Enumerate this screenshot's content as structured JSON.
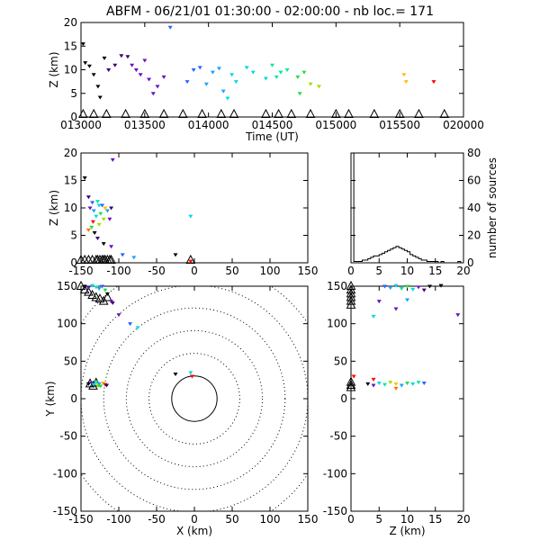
{
  "title": "ABFM - 06/21/01 01:30:00 - 02:00:00 - nb loc.=     171",
  "colors": {
    "axis": "#000000",
    "palette": [
      "#000000",
      "#3a0070",
      "#6a10c0",
      "#2a60ff",
      "#1aa0ff",
      "#00d8e8",
      "#00e8a0",
      "#20e040",
      "#a0e000",
      "#ffc000",
      "#ff7000",
      "#ff0000"
    ]
  },
  "chart_data": [
    {
      "id": "time_height",
      "type": "scatter",
      "xlabel": "Time (UT)",
      "ylabel": "Z (km)",
      "xlim": [
        "013000",
        "020000"
      ],
      "ylim": [
        0,
        20
      ],
      "x_ticks": [
        "013000",
        "013500",
        "014000",
        "014500",
        "015000",
        "015500",
        "020000"
      ],
      "y_ticks": [
        0,
        5,
        10,
        15,
        20
      ],
      "points": [
        {
          "t": "01:30:10",
          "z": 15.5,
          "c": 0
        },
        {
          "t": "01:30:20",
          "z": 11.5,
          "c": 0
        },
        {
          "t": "01:30:40",
          "z": 10.8,
          "c": 0
        },
        {
          "t": "01:31:00",
          "z": 9.0,
          "c": 0
        },
        {
          "t": "01:31:20",
          "z": 6.5,
          "c": 0
        },
        {
          "t": "01:31:30",
          "z": 4.2,
          "c": 0
        },
        {
          "t": "01:31:50",
          "z": 12.5,
          "c": 0
        },
        {
          "t": "01:32:10",
          "z": 10.0,
          "c": 1
        },
        {
          "t": "01:32:40",
          "z": 11.0,
          "c": 1
        },
        {
          "t": "01:33:10",
          "z": 13.0,
          "c": 1
        },
        {
          "t": "01:33:40",
          "z": 12.8,
          "c": 1
        },
        {
          "t": "01:34:00",
          "z": 11.0,
          "c": 2
        },
        {
          "t": "01:34:20",
          "z": 10.0,
          "c": 2
        },
        {
          "t": "01:34:40",
          "z": 9.0,
          "c": 2
        },
        {
          "t": "01:35:00",
          "z": 12.0,
          "c": 2
        },
        {
          "t": "01:35:20",
          "z": 8.0,
          "c": 2
        },
        {
          "t": "01:35:40",
          "z": 5.0,
          "c": 2
        },
        {
          "t": "01:36:00",
          "z": 6.5,
          "c": 2
        },
        {
          "t": "01:36:30",
          "z": 8.5,
          "c": 2
        },
        {
          "t": "01:37:00",
          "z": 19.0,
          "c": 3
        },
        {
          "t": "01:38:20",
          "z": 7.5,
          "c": 3
        },
        {
          "t": "01:38:50",
          "z": 10.0,
          "c": 3
        },
        {
          "t": "01:39:20",
          "z": 10.5,
          "c": 3
        },
        {
          "t": "01:39:50",
          "z": 7.0,
          "c": 4
        },
        {
          "t": "01:40:20",
          "z": 9.5,
          "c": 4
        },
        {
          "t": "01:40:50",
          "z": 10.3,
          "c": 4
        },
        {
          "t": "01:41:10",
          "z": 5.5,
          "c": 4
        },
        {
          "t": "01:41:30",
          "z": 4.0,
          "c": 5
        },
        {
          "t": "01:41:50",
          "z": 9.0,
          "c": 5
        },
        {
          "t": "01:42:10",
          "z": 7.5,
          "c": 5
        },
        {
          "t": "01:43:00",
          "z": 10.5,
          "c": 5
        },
        {
          "t": "01:43:30",
          "z": 9.5,
          "c": 5
        },
        {
          "t": "01:44:30",
          "z": 8.2,
          "c": 5
        },
        {
          "t": "01:45:00",
          "z": 11.0,
          "c": 6
        },
        {
          "t": "01:45:20",
          "z": 8.5,
          "c": 6
        },
        {
          "t": "01:45:40",
          "z": 9.5,
          "c": 6
        },
        {
          "t": "01:46:10",
          "z": 10.0,
          "c": 6
        },
        {
          "t": "01:47:00",
          "z": 8.5,
          "c": 7
        },
        {
          "t": "01:47:10",
          "z": 5.0,
          "c": 7
        },
        {
          "t": "01:47:30",
          "z": 9.5,
          "c": 7
        },
        {
          "t": "01:48:00",
          "z": 7.0,
          "c": 8
        },
        {
          "t": "01:48:40",
          "z": 6.5,
          "c": 8
        },
        {
          "t": "01:55:20",
          "z": 9.0,
          "c": 9
        },
        {
          "t": "01:55:30",
          "z": 7.5,
          "c": 9
        },
        {
          "t": "01:57:40",
          "z": 7.5,
          "c": 11
        }
      ],
      "ground_markers": [
        {
          "t": "01:30:10",
          "c": 0
        },
        {
          "t": "01:31:00",
          "c": 0
        },
        {
          "t": "01:32:00",
          "c": 1
        },
        {
          "t": "01:33:30",
          "c": 1
        },
        {
          "t": "01:35:00",
          "c": 2
        },
        {
          "t": "01:36:30",
          "c": 2
        },
        {
          "t": "01:38:00",
          "c": 3
        },
        {
          "t": "01:39:30",
          "c": 4
        },
        {
          "t": "01:41:00",
          "c": 5
        },
        {
          "t": "01:42:00",
          "c": 5
        },
        {
          "t": "01:44:30",
          "c": 6
        },
        {
          "t": "01:45:30",
          "c": 6
        },
        {
          "t": "01:46:30",
          "c": 7
        },
        {
          "t": "01:48:00",
          "c": 8
        },
        {
          "t": "01:50:00",
          "c": 9
        },
        {
          "t": "01:51:00",
          "c": 9
        },
        {
          "t": "01:53:00",
          "c": 9
        },
        {
          "t": "01:55:00",
          "c": 10
        },
        {
          "t": "01:56:30",
          "c": 11
        },
        {
          "t": "01:58:30",
          "c": 11
        }
      ]
    },
    {
      "id": "x_height",
      "type": "scatter",
      "ylabel": "Z (km)",
      "xlim": [
        -150,
        150
      ],
      "ylim": [
        0,
        20
      ],
      "x_ticks": [
        -150,
        -100,
        -50,
        0,
        50,
        100,
        150
      ],
      "y_ticks": [
        0,
        5,
        10,
        15,
        20
      ],
      "points": [
        {
          "x": -145,
          "z": 15.5,
          "c": 0
        },
        {
          "x": -140,
          "z": 12.0,
          "c": 1
        },
        {
          "x": -138,
          "z": 10.0,
          "c": 2
        },
        {
          "x": -135,
          "z": 11.0,
          "c": 3
        },
        {
          "x": -133,
          "z": 9.5,
          "c": 4
        },
        {
          "x": -130,
          "z": 8.5,
          "c": 5
        },
        {
          "x": -128,
          "z": 11.2,
          "c": 6
        },
        {
          "x": -126,
          "z": 10.5,
          "c": 5
        },
        {
          "x": -124,
          "z": 9.0,
          "c": 7
        },
        {
          "x": -122,
          "z": 10.5,
          "c": 3
        },
        {
          "x": -120,
          "z": 8.0,
          "c": 8
        },
        {
          "x": -118,
          "z": 10.0,
          "c": 9
        },
        {
          "x": -115,
          "z": 9.5,
          "c": 4
        },
        {
          "x": -112,
          "z": 8.0,
          "c": 2
        },
        {
          "x": -110,
          "z": 10.0,
          "c": 1
        },
        {
          "x": -108,
          "z": 18.8,
          "c": 2
        },
        {
          "x": -136,
          "z": 6.5,
          "c": 7
        },
        {
          "x": -132,
          "z": 5.5,
          "c": 0
        },
        {
          "x": -128,
          "z": 4.5,
          "c": 1
        },
        {
          "x": -120,
          "z": 3.5,
          "c": 0
        },
        {
          "x": -110,
          "z": 3.0,
          "c": 2
        },
        {
          "x": -95,
          "z": 1.5,
          "c": 3
        },
        {
          "x": -80,
          "z": 1.0,
          "c": 4
        },
        {
          "x": -25,
          "z": 1.5,
          "c": 0
        },
        {
          "x": -5,
          "z": 8.5,
          "c": 5
        },
        {
          "x": -140,
          "z": 6.0,
          "c": 10
        },
        {
          "x": -134,
          "z": 7.5,
          "c": 11
        },
        {
          "x": -126,
          "z": 7.0,
          "c": 8
        },
        {
          "x": -5,
          "z": 0.3,
          "c": 11
        }
      ],
      "ground_markers": [
        -150,
        -145,
        -140,
        -135,
        -130,
        -128,
        -125,
        -122,
        -120,
        -118,
        -115,
        -112,
        -110,
        -5
      ]
    },
    {
      "id": "histogram",
      "type": "bar",
      "xlabel": "",
      "ylabel": "number of sources",
      "xlim": [
        0,
        20
      ],
      "ylim": [
        0,
        80
      ],
      "x_ticks": [
        0,
        5,
        10,
        15,
        20
      ],
      "y_ticks": [
        0,
        20,
        40,
        60,
        80
      ],
      "bins": [
        0,
        0.5,
        1,
        1.5,
        2,
        2.5,
        3,
        3.5,
        4,
        4.5,
        5,
        5.5,
        6,
        6.5,
        7,
        7.5,
        8,
        8.5,
        9,
        9.5,
        10,
        10.5,
        11,
        11.5,
        12,
        12.5,
        13,
        13.5,
        14,
        14.5,
        15,
        15.5,
        16,
        16.5,
        17,
        17.5,
        18,
        18.5,
        19,
        19.5
      ],
      "values": [
        80,
        1,
        1,
        1,
        2,
        2,
        3,
        4,
        5,
        5,
        6,
        7,
        8,
        9,
        10,
        11,
        12,
        11,
        10,
        9,
        8,
        6,
        5,
        4,
        3,
        2,
        2,
        1,
        1,
        1,
        1,
        0,
        1,
        0,
        0,
        0,
        0,
        0,
        1,
        0
      ]
    },
    {
      "id": "plan_view",
      "type": "scatter",
      "xlabel": "X (km)",
      "ylabel": "Y (km)",
      "xlim": [
        -150,
        150
      ],
      "ylim": [
        -150,
        150
      ],
      "x_ticks": [
        -150,
        -100,
        -50,
        0,
        50,
        100,
        150
      ],
      "y_ticks": [
        -150,
        -100,
        -50,
        0,
        50,
        100,
        150
      ],
      "range_rings_km": [
        30,
        60,
        90,
        120,
        150,
        180
      ],
      "points": [
        {
          "x": -145,
          "y": 150,
          "c": 0
        },
        {
          "x": -140,
          "y": 148,
          "c": 2
        },
        {
          "x": -135,
          "y": 151,
          "c": 5
        },
        {
          "x": -130,
          "y": 149,
          "c": 6
        },
        {
          "x": -126,
          "y": 147,
          "c": 4
        },
        {
          "x": -122,
          "y": 150,
          "c": 3
        },
        {
          "x": -118,
          "y": 145,
          "c": 7
        },
        {
          "x": -115,
          "y": 140,
          "c": 0
        },
        {
          "x": -110,
          "y": 130,
          "c": 2
        },
        {
          "x": -108,
          "y": 128,
          "c": 1
        },
        {
          "x": -100,
          "y": 112,
          "c": 2
        },
        {
          "x": -85,
          "y": 100,
          "c": 3
        },
        {
          "x": -75,
          "y": 95,
          "c": 5
        },
        {
          "x": -140,
          "y": 20,
          "c": 0
        },
        {
          "x": -136,
          "y": 21,
          "c": 2
        },
        {
          "x": -133,
          "y": 19,
          "c": 5
        },
        {
          "x": -130,
          "y": 22,
          "c": 6
        },
        {
          "x": -128,
          "y": 18,
          "c": 8
        },
        {
          "x": -126,
          "y": 20,
          "c": 4
        },
        {
          "x": -124,
          "y": 17,
          "c": 7
        },
        {
          "x": -121,
          "y": 21,
          "c": 9
        },
        {
          "x": -118,
          "y": 19,
          "c": 11
        },
        {
          "x": -116,
          "y": 18,
          "c": 1
        },
        {
          "x": -25,
          "y": 33,
          "c": 0
        },
        {
          "x": -5,
          "y": 35,
          "c": 5
        },
        {
          "x": -3,
          "y": 30,
          "c": 11
        }
      ],
      "ground_markers": [
        {
          "x": -150,
          "y": 150
        },
        {
          "x": -145,
          "y": 145
        },
        {
          "x": -140,
          "y": 142
        },
        {
          "x": -135,
          "y": 138
        },
        {
          "x": -130,
          "y": 135
        },
        {
          "x": -125,
          "y": 133
        },
        {
          "x": -120,
          "y": 130
        },
        {
          "x": -115,
          "y": 135
        },
        {
          "x": -138,
          "y": 20
        },
        {
          "x": -134,
          "y": 17
        },
        {
          "x": -130,
          "y": 21
        }
      ]
    },
    {
      "id": "z_y_view",
      "type": "scatter",
      "xlabel": "Z (km)",
      "ylabel": "",
      "xlim": [
        0,
        20
      ],
      "ylim": [
        -150,
        150
      ],
      "x_ticks": [
        0,
        5,
        10,
        15,
        20
      ],
      "y_ticks": [
        -150,
        -100,
        -50,
        0,
        50,
        100,
        150
      ],
      "points": [
        {
          "z": 6,
          "y": 150,
          "c": 3
        },
        {
          "z": 7,
          "y": 148,
          "c": 4
        },
        {
          "z": 8,
          "y": 151,
          "c": 5
        },
        {
          "z": 9,
          "y": 147,
          "c": 6
        },
        {
          "z": 10,
          "y": 150,
          "c": 7
        },
        {
          "z": 11,
          "y": 146,
          "c": 5
        },
        {
          "z": 12,
          "y": 149,
          "c": 2
        },
        {
          "z": 13,
          "y": 145,
          "c": 1
        },
        {
          "z": 14,
          "y": 150,
          "c": 0
        },
        {
          "z": 16,
          "y": 151,
          "c": 0
        },
        {
          "z": 5,
          "y": 130,
          "c": 2
        },
        {
          "z": 4,
          "y": 110,
          "c": 5
        },
        {
          "z": 8,
          "y": 120,
          "c": 2
        },
        {
          "z": 10,
          "y": 132,
          "c": 4
        },
        {
          "z": 19,
          "y": 112,
          "c": 2
        },
        {
          "z": 3,
          "y": 20,
          "c": 0
        },
        {
          "z": 4,
          "y": 18,
          "c": 2
        },
        {
          "z": 5,
          "y": 21,
          "c": 5
        },
        {
          "z": 6,
          "y": 19,
          "c": 6
        },
        {
          "z": 7,
          "y": 22,
          "c": 8
        },
        {
          "z": 8,
          "y": 20,
          "c": 9
        },
        {
          "z": 9,
          "y": 18,
          "c": 4
        },
        {
          "z": 10,
          "y": 21,
          "c": 7
        },
        {
          "z": 11,
          "y": 20,
          "c": 5
        },
        {
          "z": 12,
          "y": 22,
          "c": 6
        },
        {
          "z": 13,
          "y": 21,
          "c": 3
        },
        {
          "z": 4,
          "y": 26,
          "c": 11
        },
        {
          "z": 0.5,
          "y": 30,
          "c": 11
        },
        {
          "z": 8,
          "y": 14,
          "c": 10
        }
      ],
      "ground_markers": [
        {
          "z": 0,
          "y": 150
        },
        {
          "z": 0,
          "y": 145
        },
        {
          "z": 0,
          "y": 140
        },
        {
          "z": 0,
          "y": 135
        },
        {
          "z": 0,
          "y": 130
        },
        {
          "z": 0,
          "y": 125
        },
        {
          "z": 0,
          "y": 22
        },
        {
          "z": 0,
          "y": 18
        },
        {
          "z": 0,
          "y": 15
        }
      ]
    }
  ]
}
